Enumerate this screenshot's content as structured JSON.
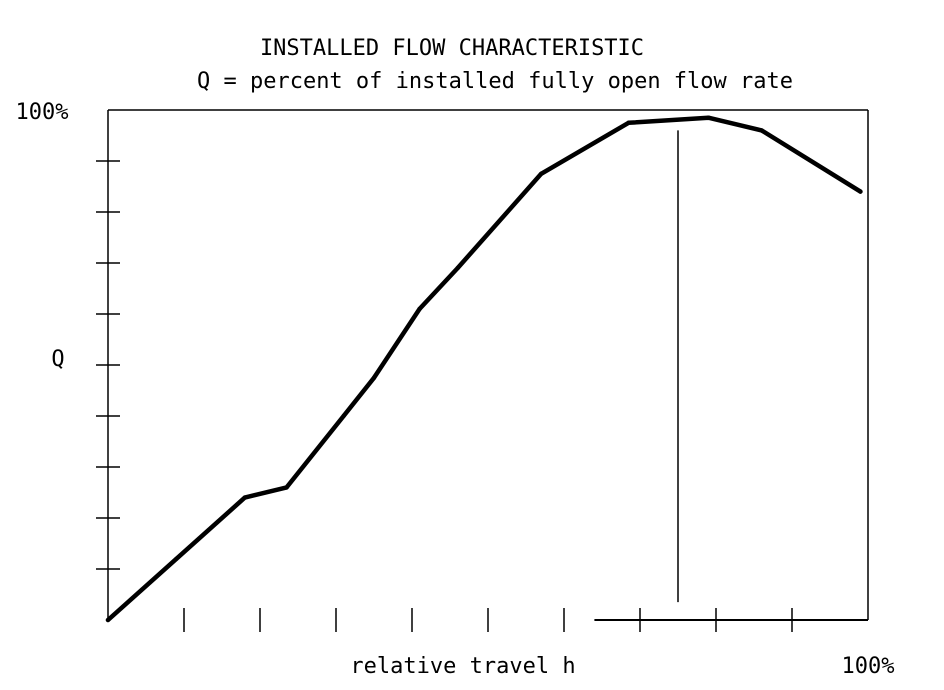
{
  "chart_data": {
    "type": "line",
    "title": "INSTALLED FLOW CHARACTERISTIC",
    "subtitle": "Q = percent of installed fully open flow rate",
    "xlabel": "relative travel h",
    "ylabel": "Q",
    "y_max_label": "100%",
    "x_max_label": "100%",
    "xlim": [
      0,
      100
    ],
    "ylim": [
      0,
      100
    ],
    "x_ticks": [
      10,
      20,
      30,
      40,
      50,
      60,
      70,
      80,
      90
    ],
    "y_ticks": [
      10,
      20,
      30,
      40,
      50,
      60,
      70,
      80,
      90
    ],
    "grid": false,
    "series": [
      {
        "x": [
          0,
          9,
          18,
          23.5,
          31,
          35,
          41,
          46,
          57,
          68.5,
          79,
          86,
          99
        ],
        "y": [
          0,
          12,
          24,
          26,
          40,
          47.5,
          61,
          69,
          87.5,
          97.5,
          98.5,
          96,
          84
        ]
      }
    ],
    "reference_line": {
      "x": 75,
      "y_from": 3.5,
      "y_to": 96
    },
    "baseline_segment": {
      "x_from": 64,
      "x_to": 100
    }
  },
  "colors": {
    "line": "#000000",
    "background": "#ffffff"
  }
}
